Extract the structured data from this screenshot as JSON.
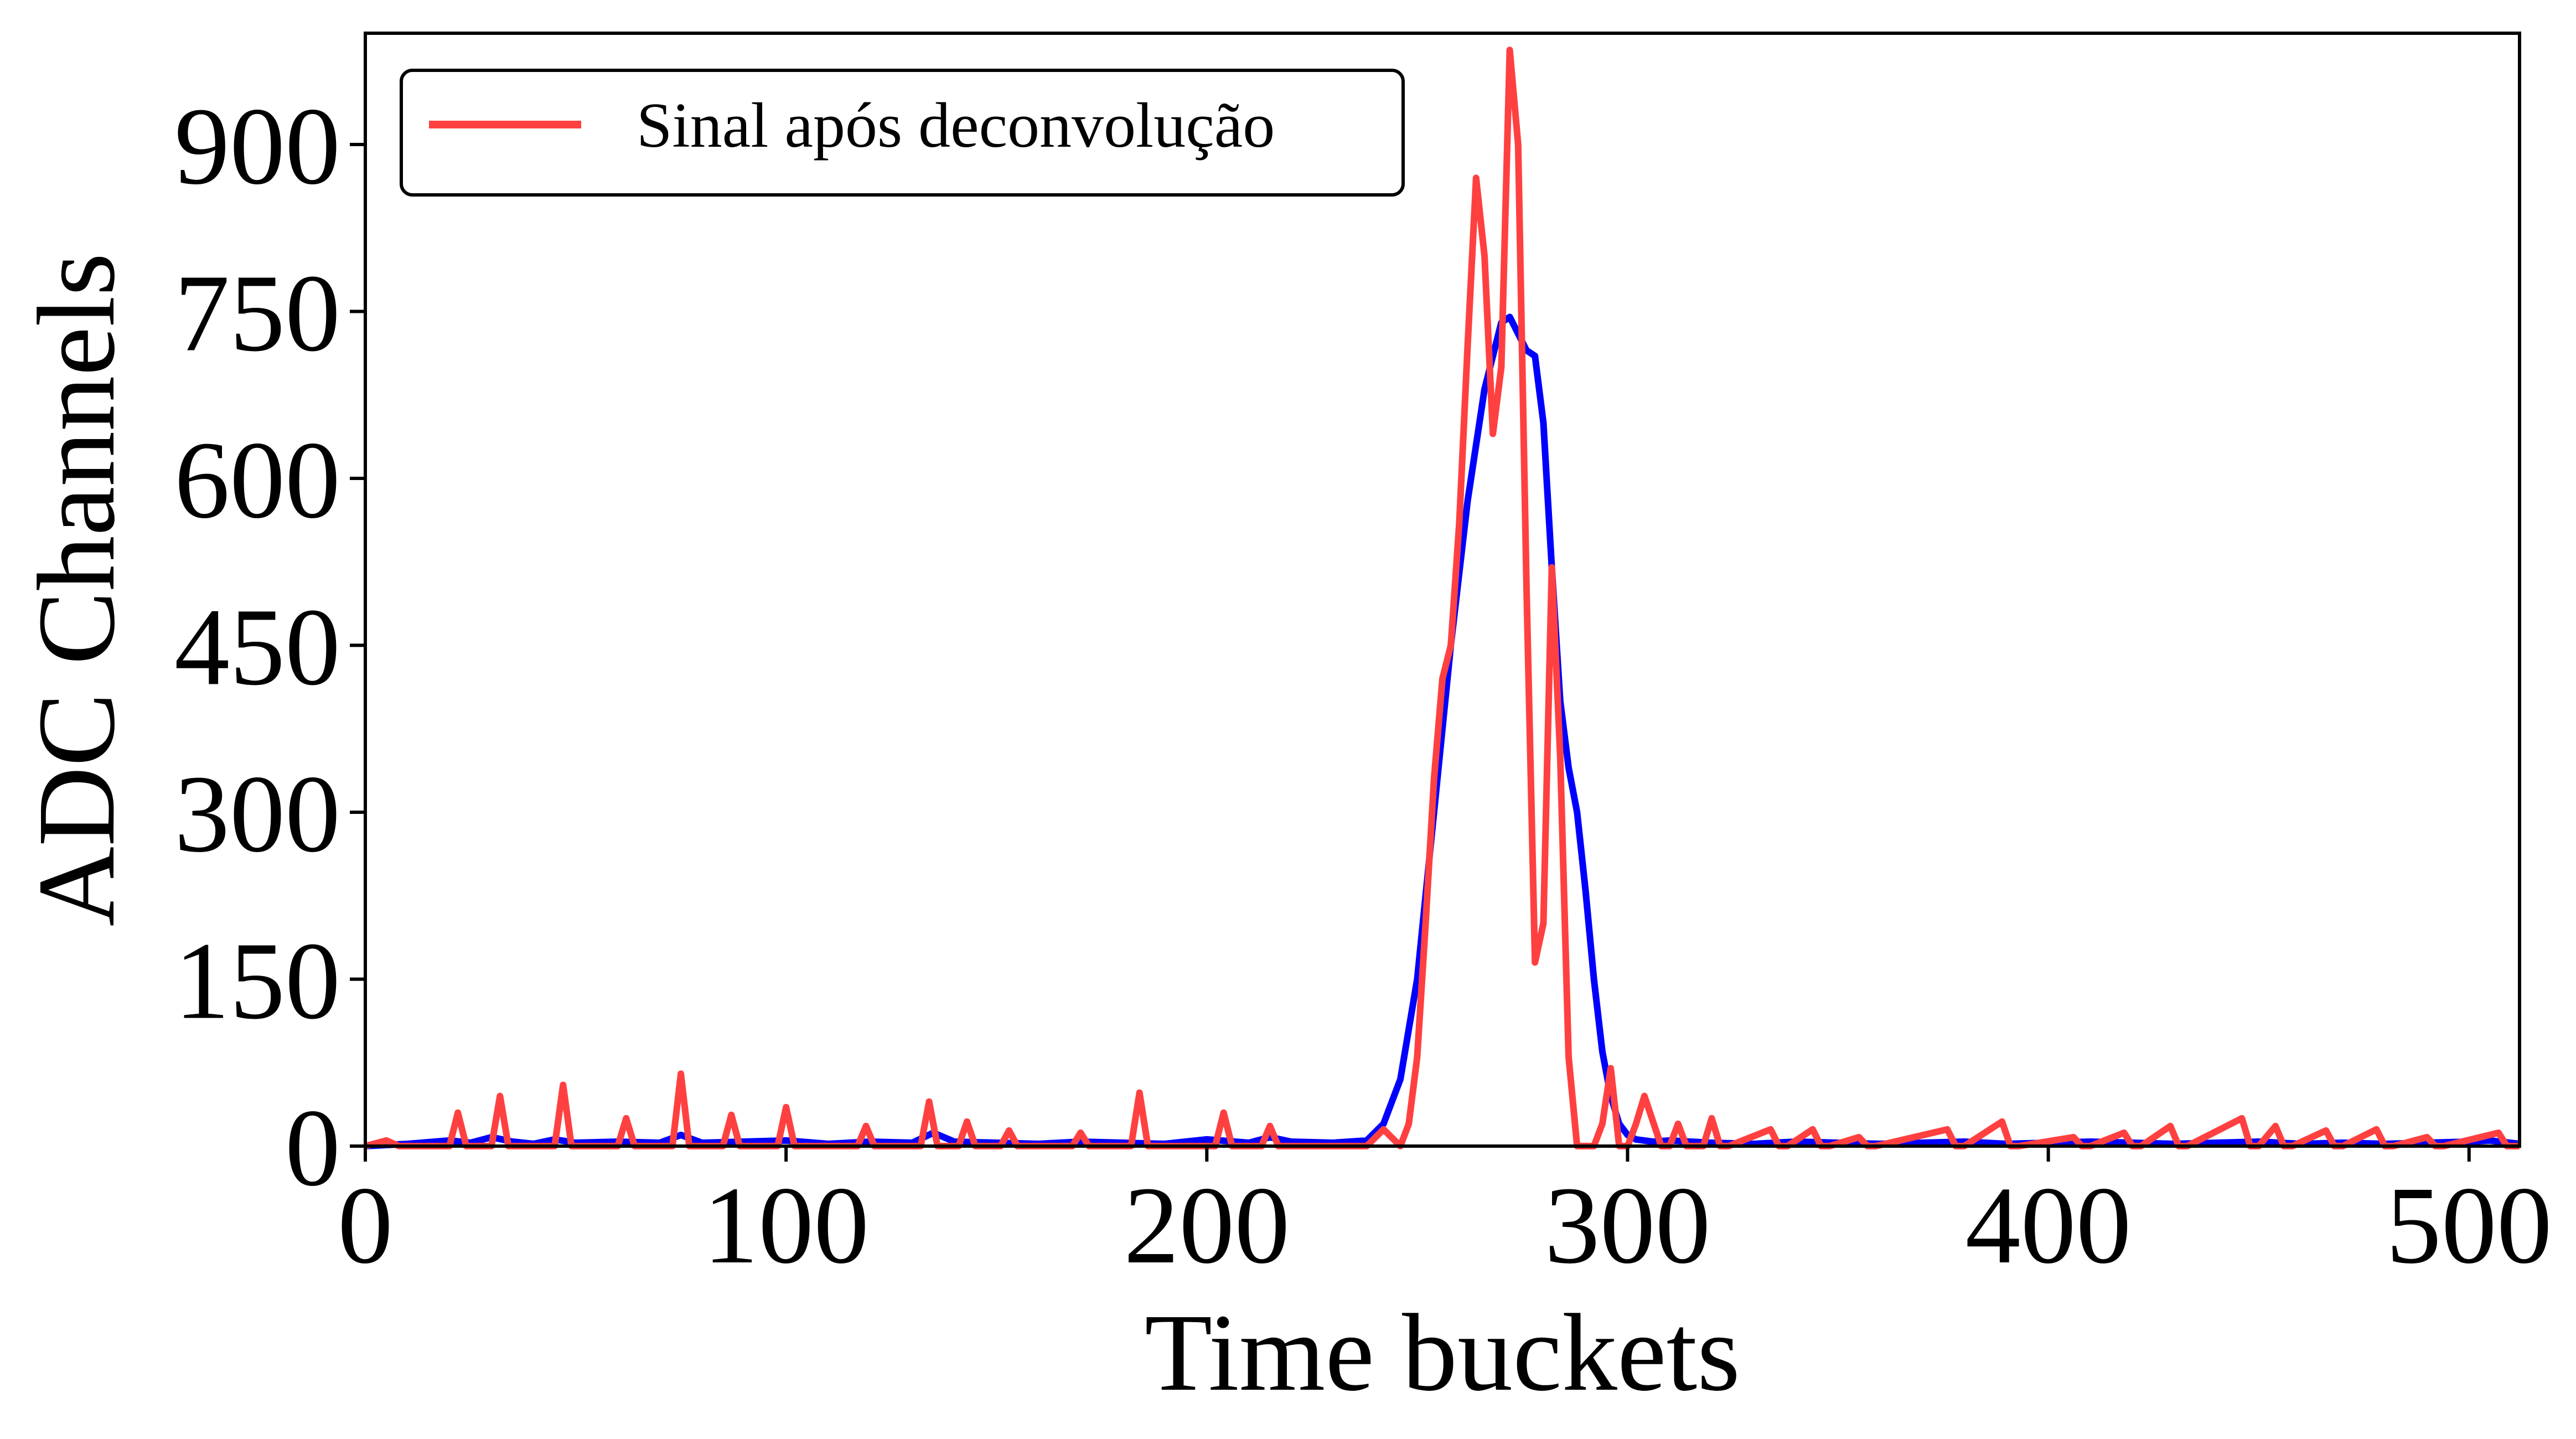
{
  "chart_data": {
    "type": "line",
    "title": "",
    "xlabel": "Time buckets",
    "ylabel": "ADC Channels",
    "xlim": [
      0,
      512
    ],
    "ylim": [
      0,
      1000
    ],
    "xticks": [
      0,
      100,
      200,
      300,
      400,
      500
    ],
    "yticks": [
      0,
      150,
      300,
      450,
      600,
      750,
      900
    ],
    "grid": false,
    "legend": {
      "position": "top-left",
      "entries": [
        {
          "label": "Sinal após deconvolução",
          "color": "#ff4040"
        }
      ]
    },
    "series": [
      {
        "name": "Sinal após deconvolução",
        "color": "#ff4040",
        "x": [
          0,
          5,
          8,
          14,
          20,
          22,
          24,
          30,
          32,
          34,
          45,
          47,
          49,
          60,
          62,
          64,
          73,
          75,
          77,
          85,
          87,
          89,
          98,
          100,
          102,
          117,
          119,
          121,
          132,
          134,
          136,
          141,
          143,
          145,
          151,
          153,
          155,
          168,
          170,
          172,
          182,
          184,
          186,
          202,
          204,
          206,
          213,
          215,
          217,
          238,
          242,
          246,
          248,
          250,
          252,
          254,
          256,
          258,
          260,
          262,
          264,
          266,
          268,
          270,
          272,
          274,
          276,
          278,
          280,
          282,
          284,
          286,
          288,
          290,
          292,
          294,
          296,
          298,
          300,
          302,
          304,
          308,
          310,
          312,
          314,
          318,
          320,
          322,
          324,
          334,
          336,
          338,
          344,
          346,
          348,
          355,
          357,
          359,
          376,
          378,
          380,
          389,
          391,
          393,
          406,
          408,
          410,
          418,
          420,
          422,
          429,
          431,
          433,
          446,
          448,
          450,
          454,
          456,
          458,
          466,
          468,
          470,
          478,
          480,
          482,
          490,
          492,
          494,
          507,
          509,
          511,
          512
        ],
        "values": [
          0,
          5,
          0,
          0,
          0,
          30,
          0,
          0,
          45,
          0,
          0,
          55,
          0,
          0,
          25,
          0,
          0,
          65,
          0,
          0,
          28,
          0,
          0,
          35,
          0,
          0,
          18,
          0,
          0,
          40,
          0,
          0,
          22,
          0,
          0,
          14,
          0,
          0,
          12,
          0,
          0,
          48,
          0,
          0,
          30,
          0,
          0,
          18,
          0,
          0,
          15,
          0,
          20,
          80,
          200,
          330,
          420,
          450,
          560,
          720,
          870,
          800,
          640,
          700,
          985,
          900,
          500,
          165,
          200,
          520,
          350,
          80,
          0,
          0,
          0,
          20,
          70,
          0,
          0,
          20,
          45,
          0,
          0,
          20,
          0,
          0,
          25,
          0,
          0,
          15,
          0,
          0,
          15,
          0,
          0,
          8,
          0,
          0,
          15,
          0,
          0,
          22,
          0,
          0,
          8,
          0,
          0,
          12,
          0,
          0,
          18,
          0,
          0,
          25,
          0,
          0,
          18,
          0,
          0,
          14,
          0,
          0,
          15,
          0,
          0,
          8,
          0,
          0,
          12,
          0,
          0,
          0
        ]
      },
      {
        "name": "",
        "color": "#0000ff",
        "x": [
          0,
          10,
          20,
          25,
          30,
          35,
          40,
          45,
          50,
          60,
          70,
          75,
          80,
          90,
          100,
          110,
          120,
          130,
          135,
          140,
          150,
          160,
          170,
          180,
          190,
          200,
          210,
          215,
          220,
          230,
          238,
          242,
          246,
          250,
          254,
          258,
          262,
          266,
          270,
          272,
          274,
          276,
          278,
          280,
          282,
          284,
          286,
          288,
          290,
          292,
          294,
          296,
          298,
          300,
          302,
          306,
          310,
          320,
          330,
          340,
          350,
          360,
          370,
          380,
          390,
          400,
          410,
          420,
          430,
          440,
          450,
          460,
          470,
          480,
          490,
          500,
          505,
          512
        ],
        "values": [
          0,
          2,
          5,
          3,
          8,
          4,
          2,
          6,
          3,
          4,
          3,
          10,
          3,
          4,
          5,
          2,
          4,
          3,
          12,
          4,
          3,
          2,
          4,
          3,
          2,
          6,
          3,
          8,
          4,
          3,
          5,
          20,
          60,
          150,
          300,
          450,
          580,
          680,
          740,
          745,
          730,
          715,
          710,
          650,
          520,
          400,
          340,
          300,
          230,
          150,
          85,
          45,
          20,
          10,
          6,
          4,
          5,
          3,
          2,
          4,
          3,
          2,
          3,
          4,
          2,
          3,
          4,
          3,
          2,
          3,
          4,
          2,
          3,
          2,
          3,
          4,
          5,
          2
        ]
      }
    ]
  }
}
